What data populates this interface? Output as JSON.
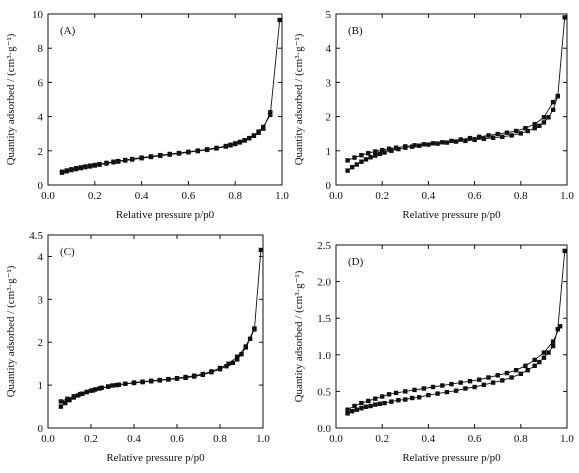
{
  "chart_data": [
    {
      "type": "scatter",
      "panel_label": "(A)",
      "xlabel": "Relative pressure p/p0",
      "ylabel": "Quantity adsorbed / (cm³·g⁻¹)",
      "xlim": [
        0,
        1.0
      ],
      "ylim": [
        0,
        10
      ],
      "xticks": [
        "0.0",
        "0.2",
        "0.4",
        "0.6",
        "0.8",
        "1.0"
      ],
      "yticks": [
        "0",
        "2",
        "4",
        "6",
        "8",
        "10"
      ],
      "series": [
        {
          "x": [
            0.06,
            0.08,
            0.1,
            0.12,
            0.14,
            0.16,
            0.18,
            0.2,
            0.22,
            0.25,
            0.28,
            0.3,
            0.33,
            0.36,
            0.4,
            0.44,
            0.48,
            0.52,
            0.56,
            0.6,
            0.64,
            0.68,
            0.72,
            0.76,
            0.78,
            0.8,
            0.82,
            0.84,
            0.86,
            0.88,
            0.9,
            0.92,
            0.95,
            0.99
          ],
          "y": [
            0.78,
            0.85,
            0.92,
            0.98,
            1.03,
            1.08,
            1.13,
            1.17,
            1.22,
            1.29,
            1.36,
            1.4,
            1.46,
            1.52,
            1.6,
            1.67,
            1.74,
            1.81,
            1.87,
            1.94,
            2.01,
            2.09,
            2.17,
            2.28,
            2.35,
            2.43,
            2.52,
            2.62,
            2.74,
            2.9,
            3.12,
            3.4,
            4.1,
            9.65
          ]
        },
        {
          "x": [
            0.06,
            0.08,
            0.1,
            0.12,
            0.14,
            0.16,
            0.18,
            0.2,
            0.22,
            0.25,
            0.28,
            0.3,
            0.33,
            0.36,
            0.4,
            0.44,
            0.48,
            0.52,
            0.56,
            0.6,
            0.64,
            0.68,
            0.72,
            0.76,
            0.78,
            0.8,
            0.82,
            0.84,
            0.86,
            0.88,
            0.9,
            0.92,
            0.95
          ],
          "y": [
            0.72,
            0.8,
            0.87,
            0.93,
            0.99,
            1.04,
            1.09,
            1.14,
            1.19,
            1.26,
            1.33,
            1.37,
            1.43,
            1.49,
            1.57,
            1.64,
            1.71,
            1.78,
            1.84,
            1.91,
            1.98,
            2.05,
            2.14,
            2.25,
            2.32,
            2.4,
            2.49,
            2.6,
            2.73,
            2.88,
            3.06,
            3.3,
            4.25
          ]
        }
      ]
    },
    {
      "type": "scatter",
      "panel_label": "(B)",
      "xlabel": "Relative pressure p/p0",
      "ylabel": "Quantity adsorbed / (cm³·g⁻¹)",
      "xlim": [
        0,
        1.0
      ],
      "ylim": [
        0,
        5
      ],
      "xticks": [
        "0.0",
        "0.2",
        "0.4",
        "0.6",
        "0.8",
        "1.0"
      ],
      "yticks": [
        "0",
        "1",
        "2",
        "3",
        "4",
        "5"
      ],
      "series": [
        {
          "x": [
            0.05,
            0.07,
            0.09,
            0.11,
            0.13,
            0.15,
            0.17,
            0.19,
            0.21,
            0.24,
            0.27,
            0.3,
            0.33,
            0.36,
            0.4,
            0.44,
            0.48,
            0.52,
            0.56,
            0.6,
            0.64,
            0.68,
            0.72,
            0.76,
            0.8,
            0.83,
            0.86,
            0.88,
            0.9,
            0.92,
            0.94,
            0.96,
            0.99
          ],
          "y": [
            0.42,
            0.52,
            0.6,
            0.68,
            0.75,
            0.81,
            0.86,
            0.91,
            0.95,
            1.0,
            1.05,
            1.09,
            1.12,
            1.15,
            1.18,
            1.21,
            1.24,
            1.27,
            1.29,
            1.32,
            1.35,
            1.38,
            1.41,
            1.45,
            1.51,
            1.58,
            1.66,
            1.73,
            1.83,
            1.98,
            2.2,
            2.6,
            4.9
          ]
        },
        {
          "x": [
            0.05,
            0.08,
            0.11,
            0.14,
            0.17,
            0.2,
            0.23,
            0.26,
            0.3,
            0.34,
            0.38,
            0.42,
            0.46,
            0.5,
            0.54,
            0.58,
            0.62,
            0.66,
            0.7,
            0.74,
            0.78,
            0.82,
            0.86,
            0.9,
            0.94,
            0.96
          ],
          "y": [
            0.72,
            0.8,
            0.87,
            0.93,
            0.98,
            1.02,
            1.06,
            1.09,
            1.13,
            1.16,
            1.19,
            1.22,
            1.25,
            1.29,
            1.33,
            1.37,
            1.41,
            1.45,
            1.49,
            1.53,
            1.58,
            1.66,
            1.78,
            1.98,
            2.42,
            2.6
          ]
        }
      ]
    },
    {
      "type": "scatter",
      "panel_label": "(C)",
      "xlabel": "Relative pressure p/p0",
      "ylabel": "Quantity adsorbed / (cm³·g⁻¹)",
      "xlim": [
        0,
        1.0
      ],
      "ylim": [
        0,
        4.5
      ],
      "xticks": [
        "0.0",
        "0.2",
        "0.4",
        "0.6",
        "0.8",
        "1.0"
      ],
      "yticks": [
        "0",
        "1",
        "2",
        "3",
        "4",
        "4.5"
      ],
      "series": [
        {
          "x": [
            0.06,
            0.08,
            0.1,
            0.12,
            0.14,
            0.16,
            0.18,
            0.2,
            0.22,
            0.25,
            0.28,
            0.3,
            0.33,
            0.36,
            0.4,
            0.44,
            0.48,
            0.52,
            0.56,
            0.6,
            0.64,
            0.68,
            0.72,
            0.76,
            0.8,
            0.83,
            0.86,
            0.88,
            0.9,
            0.92,
            0.94,
            0.96,
            0.99
          ],
          "y": [
            0.5,
            0.58,
            0.65,
            0.71,
            0.76,
            0.8,
            0.84,
            0.87,
            0.9,
            0.94,
            0.97,
            0.99,
            1.01,
            1.03,
            1.05,
            1.07,
            1.09,
            1.11,
            1.13,
            1.15,
            1.17,
            1.2,
            1.24,
            1.3,
            1.37,
            1.44,
            1.52,
            1.6,
            1.72,
            1.88,
            2.08,
            2.3,
            4.15
          ]
        },
        {
          "x": [
            0.06,
            0.09,
            0.12,
            0.15,
            0.18,
            0.21,
            0.24,
            0.28,
            0.32,
            0.36,
            0.4,
            0.44,
            0.48,
            0.52,
            0.56,
            0.6,
            0.64,
            0.68,
            0.72,
            0.76,
            0.8,
            0.84,
            0.88,
            0.92,
            0.96
          ],
          "y": [
            0.62,
            0.68,
            0.74,
            0.79,
            0.84,
            0.88,
            0.92,
            0.96,
            1.0,
            1.03,
            1.06,
            1.08,
            1.1,
            1.12,
            1.14,
            1.16,
            1.19,
            1.22,
            1.26,
            1.32,
            1.4,
            1.5,
            1.66,
            1.9,
            2.32
          ]
        }
      ]
    },
    {
      "type": "scatter",
      "panel_label": "(D)",
      "xlabel": "Relative pressure p/p0",
      "ylabel": "Quantity adsorbed / (cm³·g⁻¹)",
      "xlim": [
        0,
        1.0
      ],
      "ylim": [
        0,
        2.5
      ],
      "xticks": [
        "0.0",
        "0.2",
        "0.4",
        "0.6",
        "0.8",
        "1.0"
      ],
      "yticks": [
        "0.0",
        "0.5",
        "1.0",
        "1.5",
        "2.0",
        "2.5"
      ],
      "series": [
        {
          "x": [
            0.05,
            0.07,
            0.09,
            0.11,
            0.13,
            0.15,
            0.17,
            0.19,
            0.21,
            0.24,
            0.27,
            0.3,
            0.33,
            0.36,
            0.4,
            0.44,
            0.48,
            0.52,
            0.56,
            0.6,
            0.64,
            0.68,
            0.72,
            0.76,
            0.8,
            0.83,
            0.86,
            0.88,
            0.9,
            0.92,
            0.94,
            0.96,
            0.99
          ],
          "y": [
            0.2,
            0.23,
            0.25,
            0.27,
            0.29,
            0.3,
            0.32,
            0.33,
            0.34,
            0.36,
            0.38,
            0.39,
            0.41,
            0.42,
            0.45,
            0.47,
            0.49,
            0.51,
            0.54,
            0.56,
            0.59,
            0.62,
            0.65,
            0.69,
            0.74,
            0.79,
            0.85,
            0.9,
            0.96,
            1.03,
            1.12,
            1.35,
            2.42
          ]
        },
        {
          "x": [
            0.05,
            0.08,
            0.11,
            0.14,
            0.17,
            0.2,
            0.23,
            0.26,
            0.3,
            0.34,
            0.38,
            0.42,
            0.46,
            0.5,
            0.54,
            0.58,
            0.62,
            0.66,
            0.7,
            0.74,
            0.78,
            0.82,
            0.86,
            0.9,
            0.94,
            0.97
          ],
          "y": [
            0.25,
            0.3,
            0.34,
            0.37,
            0.4,
            0.43,
            0.46,
            0.48,
            0.5,
            0.52,
            0.54,
            0.56,
            0.58,
            0.6,
            0.62,
            0.64,
            0.66,
            0.69,
            0.72,
            0.75,
            0.79,
            0.85,
            0.93,
            1.03,
            1.18,
            1.39
          ]
        }
      ]
    }
  ]
}
